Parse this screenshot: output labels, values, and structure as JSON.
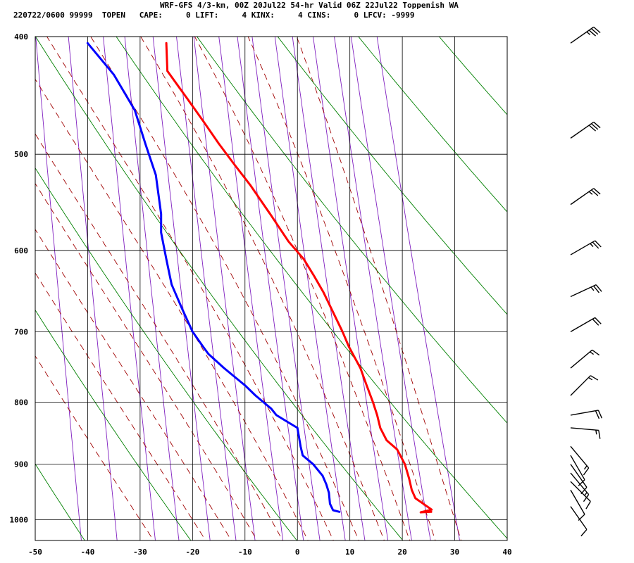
{
  "header": {
    "title": "WRF-GFS 4/3-km, 00Z 20Jul22 54-hr Valid 06Z 22Jul22 Toppenish WA",
    "info": "220722/0600 99999  TOPEN   CAPE:     0 LIFT:     4 KINX:     4 CINS:     0 LFCV: -9999"
  },
  "chart_data": {
    "type": "line",
    "subtype": "skew-t log-p sounding",
    "title": "WRF-GFS 4/3-km, 00Z 20Jul22 54-hr Valid 06Z 22Jul22 Toppenish WA",
    "xlabel": "",
    "ylabel": "",
    "xlim": [
      -50,
      40
    ],
    "ylim_pressure": [
      1040,
      400
    ],
    "x_ticks": [
      "-50",
      "-40",
      "-30",
      "-20",
      "-10",
      "0",
      "10",
      "20",
      "30",
      "40"
    ],
    "x_tick_values": [
      -50,
      -40,
      -30,
      -20,
      -10,
      0,
      10,
      20,
      30,
      40
    ],
    "p_ticks": [
      "400",
      "500",
      "600",
      "700",
      "800",
      "900",
      "1000"
    ],
    "p_tick_values": [
      400,
      500,
      600,
      700,
      800,
      900,
      1000
    ],
    "grid": true,
    "colors": {
      "temperature": "#ff0000",
      "dewpoint": "#0000ff",
      "dry_adiabat": "#008000",
      "moist_adiabat": "#a00000",
      "mixing_ratio": "#8020c0",
      "grid": "#000000",
      "wind_barb": "#000000"
    },
    "series": [
      {
        "id": "temperature",
        "points": [
          [
            25.5,
            985
          ],
          [
            23.5,
            986
          ],
          [
            25.6,
            981
          ],
          [
            24,
            970
          ],
          [
            22.5,
            960
          ],
          [
            21.8,
            945
          ],
          [
            21.3,
            925
          ],
          [
            20.5,
            900
          ],
          [
            19,
            875
          ],
          [
            17,
            860
          ],
          [
            15.8,
            840
          ],
          [
            15.2,
            820
          ],
          [
            14.4,
            800
          ],
          [
            13.2,
            775
          ],
          [
            12,
            750
          ],
          [
            9.8,
            720
          ],
          [
            8.6,
            700
          ],
          [
            5,
            650
          ],
          [
            3.2,
            630
          ],
          [
            1.2,
            610
          ],
          [
            -1.7,
            590
          ],
          [
            -5.2,
            560
          ],
          [
            -9,
            530
          ],
          [
            -12,
            510
          ],
          [
            -15,
            490
          ],
          [
            -17.9,
            470
          ],
          [
            -21,
            450
          ],
          [
            -24.8,
            427
          ],
          [
            -25,
            405
          ]
        ]
      },
      {
        "id": "dewpoint",
        "points": [
          [
            8,
            985
          ],
          [
            6.8,
            982
          ],
          [
            6.2,
            970
          ],
          [
            6,
            950
          ],
          [
            5.5,
            935
          ],
          [
            4.8,
            920
          ],
          [
            3,
            900
          ],
          [
            1,
            885
          ],
          [
            0.6,
            870
          ],
          [
            0,
            840
          ],
          [
            -2,
            830
          ],
          [
            -4,
            820
          ],
          [
            -5,
            810
          ],
          [
            -8,
            790
          ],
          [
            -10,
            775
          ],
          [
            -14,
            750
          ],
          [
            -17,
            730
          ],
          [
            -18,
            720
          ],
          [
            -20,
            700
          ],
          [
            -22,
            670
          ],
          [
            -24,
            640
          ],
          [
            -25,
            610
          ],
          [
            -26,
            580
          ],
          [
            -26,
            560
          ],
          [
            -27,
            520
          ],
          [
            -29,
            490
          ],
          [
            -31,
            460
          ],
          [
            -35,
            430
          ],
          [
            -40,
            405
          ]
        ]
      }
    ],
    "dry_adiabats_theta_K": [
      210,
      230,
      250,
      270,
      290,
      310,
      330,
      350,
      370,
      390,
      410,
      430
    ],
    "moist_adiabats_start_C_at_1000": [
      -30,
      -20,
      -15,
      -10,
      -5,
      0,
      5,
      10,
      15,
      20,
      25,
      30
    ],
    "mixing_ratio_lines_gkg": [
      0.1,
      0.2,
      0.4,
      0.6,
      1,
      1.5,
      2,
      3,
      4,
      5,
      7,
      9,
      12,
      16,
      20,
      28
    ],
    "wind_barbs": [
      {
        "p": 405,
        "speed_kt": 35,
        "dir_deg": 235
      },
      {
        "p": 485,
        "speed_kt": 30,
        "dir_deg": 235
      },
      {
        "p": 550,
        "speed_kt": 25,
        "dir_deg": 235
      },
      {
        "p": 605,
        "speed_kt": 25,
        "dir_deg": 240
      },
      {
        "p": 655,
        "speed_kt": 25,
        "dir_deg": 245
      },
      {
        "p": 700,
        "speed_kt": 20,
        "dir_deg": 240
      },
      {
        "p": 750,
        "speed_kt": 15,
        "dir_deg": 230
      },
      {
        "p": 790,
        "speed_kt": 15,
        "dir_deg": 225
      },
      {
        "p": 820,
        "speed_kt": 20,
        "dir_deg": 260
      },
      {
        "p": 840,
        "speed_kt": 15,
        "dir_deg": 275
      },
      {
        "p": 870,
        "speed_kt": 15,
        "dir_deg": 320
      },
      {
        "p": 885,
        "speed_kt": 10,
        "dir_deg": 330
      },
      {
        "p": 900,
        "speed_kt": 10,
        "dir_deg": 325
      },
      {
        "p": 915,
        "speed_kt": 15,
        "dir_deg": 320
      },
      {
        "p": 930,
        "speed_kt": 10,
        "dir_deg": 315
      },
      {
        "p": 945,
        "speed_kt": 10,
        "dir_deg": 330
      },
      {
        "p": 975,
        "speed_kt": 10,
        "dir_deg": 325
      }
    ]
  }
}
